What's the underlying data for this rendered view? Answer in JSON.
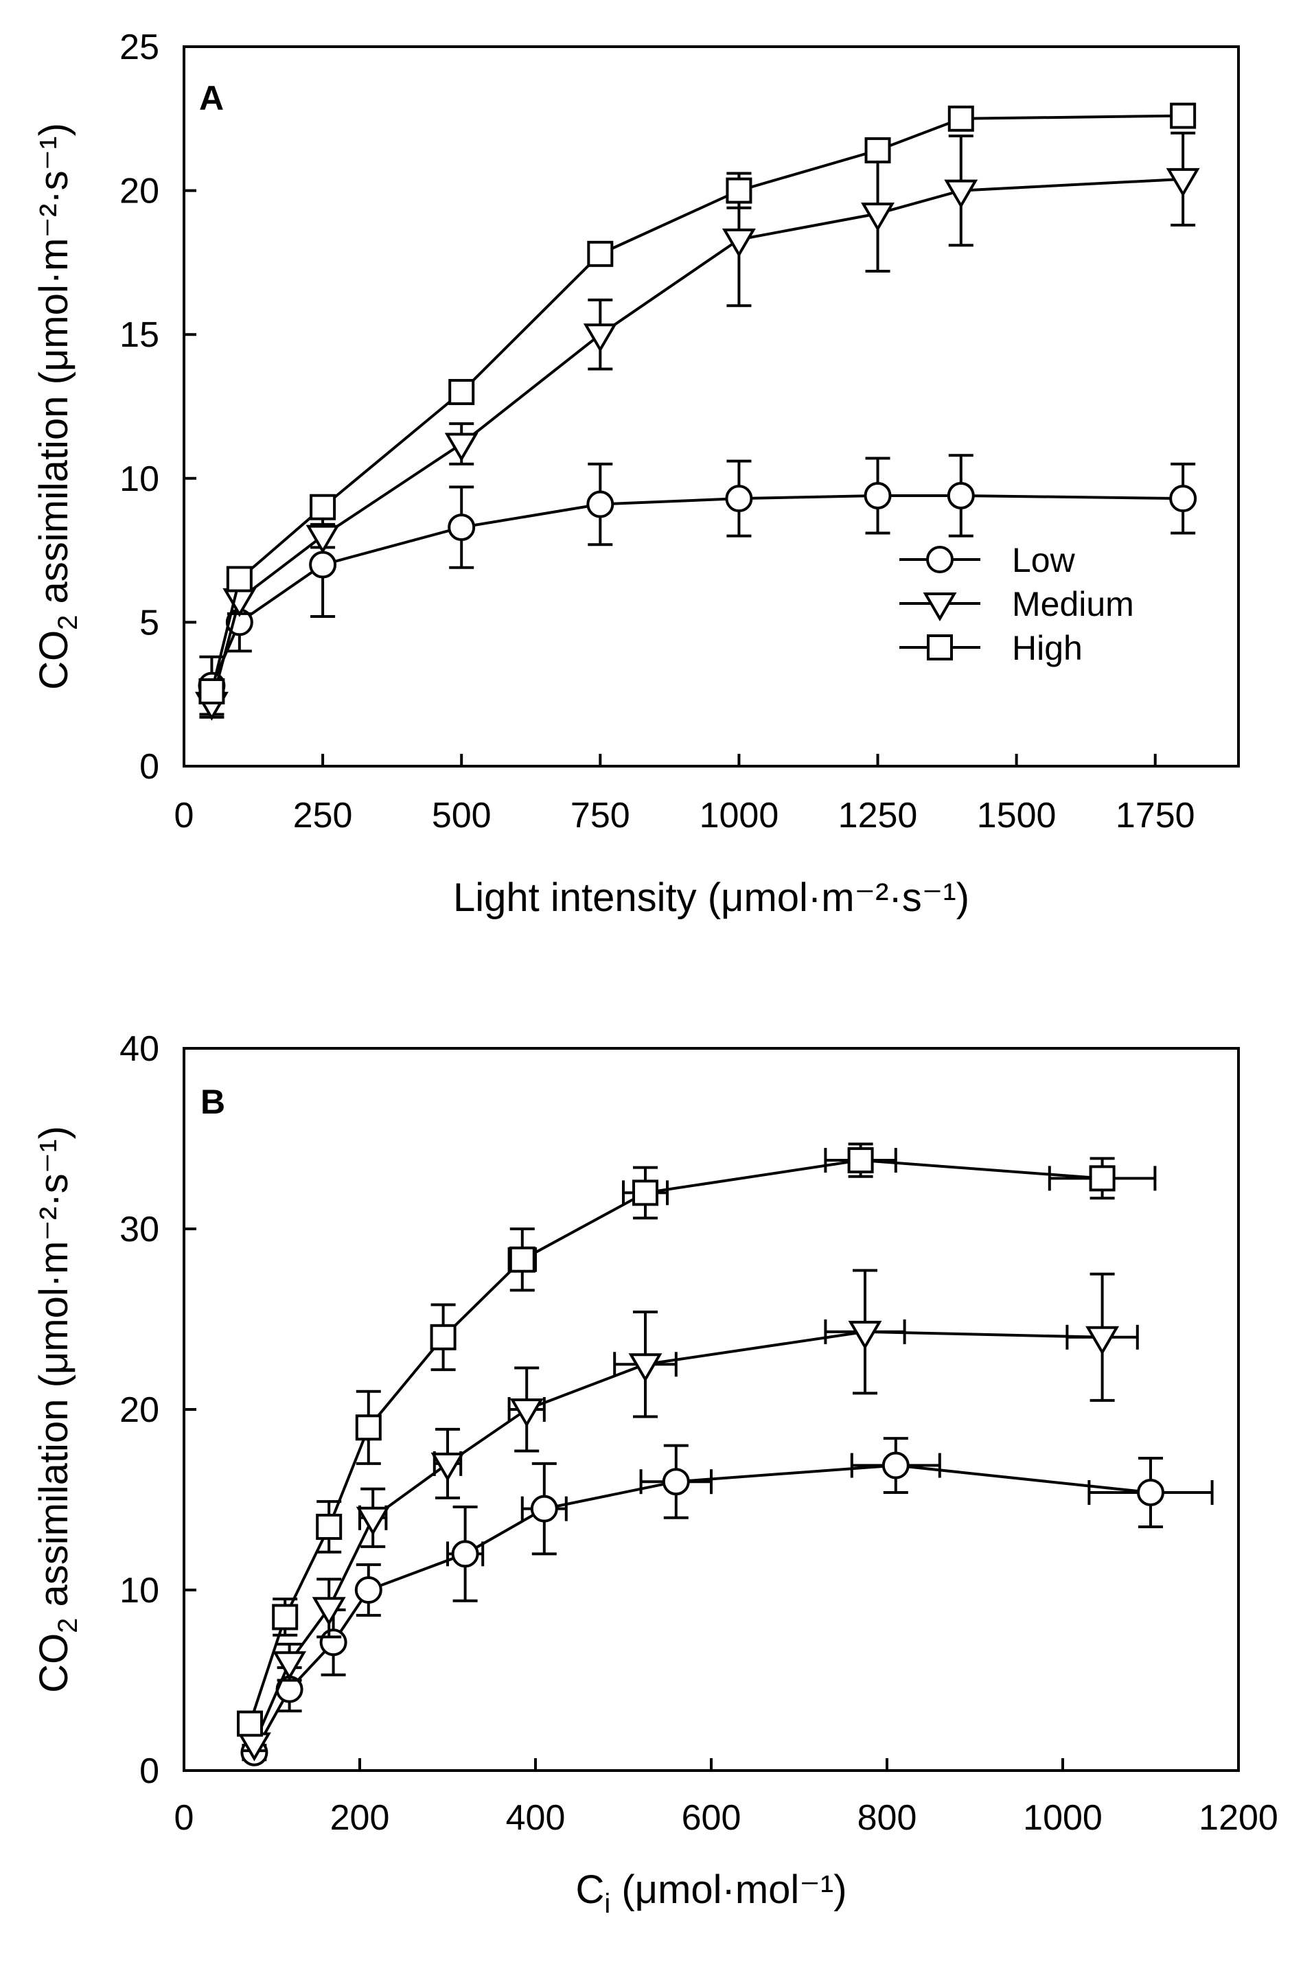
{
  "chart_data": [
    {
      "type": "line",
      "panel_label": "A",
      "title": "",
      "xlabel_main": "Light intensity (",
      "xlabel_units": "μmol·m⁻²·s⁻¹",
      "xlabel_close": ")",
      "ylabel_prefix": "CO",
      "ylabel_sub": "2",
      "ylabel_main": " assimilation (",
      "ylabel_units": "μmol·m⁻²·s⁻¹",
      "ylabel_close": ")",
      "xlim": [
        0,
        1900
      ],
      "ylim": [
        0,
        25
      ],
      "xticks": [
        0,
        250,
        500,
        750,
        1000,
        1250,
        1500,
        1750
      ],
      "yticks": [
        0,
        5,
        10,
        15,
        20,
        25
      ],
      "legend_position": "lower-right",
      "series": [
        {
          "name": "Low",
          "marker": "circle",
          "x": [
            50,
            100,
            250,
            500,
            750,
            1000,
            1250,
            1400,
            1800
          ],
          "y": [
            2.8,
            5.0,
            7.0,
            8.3,
            9.1,
            9.3,
            9.4,
            9.4,
            9.3
          ],
          "yerr": [
            1.0,
            1.0,
            1.8,
            1.4,
            1.4,
            1.3,
            1.3,
            1.4,
            1.2
          ]
        },
        {
          "name": "Medium",
          "marker": "triangle-down",
          "x": [
            50,
            100,
            250,
            500,
            750,
            1000,
            1250,
            1400,
            1800
          ],
          "y": [
            2.2,
            5.8,
            8.0,
            11.2,
            15.0,
            18.3,
            19.2,
            20.0,
            20.4
          ],
          "yerr": [
            0.5,
            0.5,
            0.4,
            0.7,
            1.2,
            2.3,
            2.0,
            1.9,
            1.6
          ]
        },
        {
          "name": "High",
          "marker": "square",
          "x": [
            50,
            100,
            250,
            500,
            750,
            1000,
            1250,
            1400,
            1800
          ],
          "y": [
            2.6,
            6.5,
            9.0,
            13.0,
            17.8,
            20.0,
            21.4,
            22.5,
            22.6
          ],
          "yerr": [
            0.3,
            0.3,
            0.3,
            0.3,
            0.3,
            0.6,
            0.3,
            0.3,
            0.3
          ]
        }
      ]
    },
    {
      "type": "line",
      "panel_label": "B",
      "title": "",
      "xlabel_prefix": "C",
      "xlabel_sub": "i",
      "xlabel_main": " (",
      "xlabel_units": "μmol·mol⁻¹",
      "xlabel_close": ")",
      "ylabel_prefix": "CO",
      "ylabel_sub": "2",
      "ylabel_main": " assimilation (",
      "ylabel_units": "μmol·m⁻²·s⁻¹",
      "ylabel_close": ")",
      "xlim": [
        0,
        1200
      ],
      "ylim": [
        0,
        40
      ],
      "xticks": [
        0,
        200,
        400,
        600,
        800,
        1000,
        1200
      ],
      "yticks": [
        0,
        10,
        20,
        30,
        40
      ],
      "series": [
        {
          "name": "Low",
          "marker": "circle",
          "x": [
            80,
            120,
            170,
            210,
            320,
            410,
            560,
            810,
            1100
          ],
          "y": [
            1.0,
            4.5,
            7.1,
            10.0,
            12.0,
            14.5,
            16.0,
            16.9,
            15.4
          ],
          "yerr": [
            0.4,
            1.2,
            1.8,
            1.4,
            2.6,
            2.5,
            2.0,
            1.5,
            1.9
          ],
          "xerr": [
            0,
            0,
            0,
            0,
            20,
            25,
            40,
            50,
            70
          ]
        },
        {
          "name": "Medium",
          "marker": "triangle-down",
          "x": [
            80,
            120,
            165,
            215,
            300,
            390,
            525,
            775,
            1045
          ],
          "y": [
            1.5,
            6.0,
            9.0,
            14.0,
            17.0,
            20.0,
            22.5,
            24.3,
            24.0
          ],
          "yerr": [
            0.4,
            1.0,
            1.6,
            1.6,
            1.9,
            2.3,
            2.9,
            3.4,
            3.5
          ],
          "xerr": [
            0,
            0,
            0,
            15,
            15,
            20,
            35,
            45,
            40
          ]
        },
        {
          "name": "High",
          "marker": "square",
          "x": [
            75,
            115,
            165,
            210,
            295,
            385,
            525,
            770,
            1045
          ],
          "y": [
            2.6,
            8.5,
            13.5,
            19.0,
            24.0,
            28.3,
            32.0,
            33.8,
            32.8
          ],
          "yerr": [
            0.4,
            1.0,
            1.4,
            2.0,
            1.8,
            1.7,
            1.4,
            0.9,
            1.1
          ],
          "xerr": [
            0,
            0,
            0,
            0,
            0,
            15,
            25,
            40,
            60
          ]
        }
      ]
    }
  ]
}
